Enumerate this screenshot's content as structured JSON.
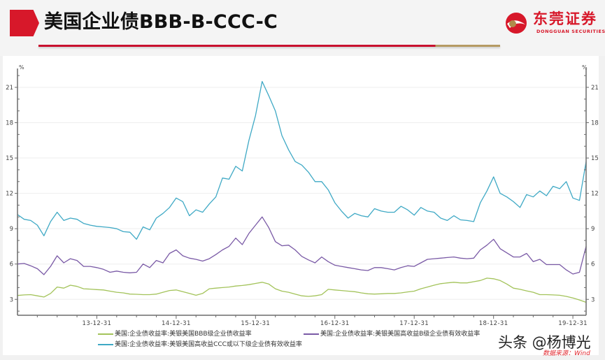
{
  "header": {
    "title": "美国企业债BBB-B-CCC-C",
    "logo": {
      "name_cn": "东莞证券",
      "name_en": "DONGGUAN SECURITIES"
    }
  },
  "colors": {
    "brand_red": "#d7182a",
    "rule_gold": "#b59a63",
    "source_red": "#e2282f"
  },
  "axis_units": {
    "left": "%",
    "right": "%"
  },
  "watermark": "头条 @杨博光",
  "source": "数据来源：Wind",
  "chart_data": {
    "type": "line",
    "title": "美国企业债BBB-B-CCC-C",
    "xlabel": "",
    "ylabel": "%",
    "ylabel_right": "%",
    "ylim": [
      1.65,
      22.6
    ],
    "xlim": [
      "2013-01",
      "2020-03"
    ],
    "yticks": [
      3,
      6,
      9,
      12,
      15,
      18,
      21
    ],
    "xticks": [
      {
        "at": "2014-01",
        "label": "13-12-31"
      },
      {
        "at": "2015-01",
        "label": "14-12-31"
      },
      {
        "at": "2016-01",
        "label": "15-12-31"
      },
      {
        "at": "2017-01",
        "label": "16-12-31"
      },
      {
        "at": "2018-01",
        "label": "17-12-31"
      },
      {
        "at": "2019-01",
        "label": "18-12-31"
      },
      {
        "at": "2020-01",
        "label": "19-12-31"
      }
    ],
    "grid": true,
    "legend_position": "bottom",
    "x": [
      "2013-01",
      "2013-02",
      "2013-03",
      "2013-04",
      "2013-05",
      "2013-06",
      "2013-07",
      "2013-08",
      "2013-09",
      "2013-10",
      "2013-11",
      "2013-12",
      "2014-01",
      "2014-02",
      "2014-03",
      "2014-04",
      "2014-05",
      "2014-06",
      "2014-07",
      "2014-08",
      "2014-09",
      "2014-10",
      "2014-11",
      "2014-12",
      "2015-01",
      "2015-02",
      "2015-03",
      "2015-04",
      "2015-05",
      "2015-06",
      "2015-07",
      "2015-08",
      "2015-09",
      "2015-10",
      "2015-11",
      "2015-12",
      "2016-01",
      "2016-02",
      "2016-03",
      "2016-04",
      "2016-05",
      "2016-06",
      "2016-07",
      "2016-08",
      "2016-09",
      "2016-10",
      "2016-11",
      "2016-12",
      "2017-01",
      "2017-02",
      "2017-03",
      "2017-04",
      "2017-05",
      "2017-06",
      "2017-07",
      "2017-08",
      "2017-09",
      "2017-10",
      "2017-11",
      "2017-12",
      "2018-01",
      "2018-02",
      "2018-03",
      "2018-04",
      "2018-05",
      "2018-06",
      "2018-07",
      "2018-08",
      "2018-09",
      "2018-10",
      "2018-11",
      "2018-12",
      "2019-01",
      "2019-02",
      "2019-03",
      "2019-04",
      "2019-05",
      "2019-06",
      "2019-07",
      "2019-08",
      "2019-09",
      "2019-10",
      "2019-11",
      "2019-12",
      "2020-01",
      "2020-02",
      "2020-03"
    ],
    "series": [
      {
        "name": "美国:企业债收益率:美银美国BBB级企业债收益率",
        "color": "#a3c35a",
        "values": [
          3.33,
          3.38,
          3.4,
          3.3,
          3.2,
          3.5,
          4.05,
          3.95,
          4.2,
          4.1,
          3.9,
          3.87,
          3.83,
          3.8,
          3.7,
          3.6,
          3.55,
          3.45,
          3.43,
          3.4,
          3.4,
          3.45,
          3.6,
          3.75,
          3.8,
          3.65,
          3.5,
          3.35,
          3.5,
          3.9,
          3.95,
          4.0,
          4.05,
          4.13,
          4.18,
          4.25,
          4.35,
          4.45,
          4.3,
          3.9,
          3.7,
          3.6,
          3.45,
          3.3,
          3.25,
          3.3,
          3.4,
          3.85,
          3.8,
          3.75,
          3.7,
          3.65,
          3.55,
          3.47,
          3.45,
          3.47,
          3.5,
          3.5,
          3.55,
          3.63,
          3.7,
          3.9,
          4.05,
          4.2,
          4.33,
          4.4,
          4.45,
          4.4,
          4.4,
          4.5,
          4.6,
          4.8,
          4.75,
          4.6,
          4.3,
          3.95,
          3.85,
          3.72,
          3.6,
          3.4,
          3.4,
          3.38,
          3.35,
          3.25,
          3.12,
          2.95,
          2.75
        ]
      },
      {
        "name": "美国:企业债收益率:美银美国高收益B级企业债有效收益率",
        "color": "#7a5aa6",
        "values": [
          6.0,
          6.05,
          5.85,
          5.6,
          5.1,
          5.8,
          6.7,
          6.1,
          6.45,
          6.3,
          5.8,
          5.8,
          5.7,
          5.55,
          5.3,
          5.4,
          5.3,
          5.25,
          5.3,
          6.0,
          5.7,
          6.3,
          6.1,
          6.9,
          7.2,
          6.7,
          6.5,
          6.4,
          6.25,
          6.45,
          6.8,
          7.2,
          7.5,
          8.2,
          7.65,
          8.6,
          9.3,
          10.0,
          9.1,
          7.9,
          7.55,
          7.6,
          7.2,
          6.65,
          6.35,
          6.1,
          6.6,
          6.2,
          5.9,
          5.8,
          5.7,
          5.6,
          5.5,
          5.45,
          5.7,
          5.7,
          5.6,
          5.5,
          5.7,
          5.85,
          5.8,
          6.1,
          6.4,
          6.45,
          6.5,
          6.55,
          6.6,
          6.5,
          6.45,
          6.5,
          7.2,
          7.6,
          8.1,
          7.3,
          6.95,
          6.6,
          6.6,
          6.9,
          6.2,
          6.4,
          5.95,
          5.95,
          5.95,
          5.5,
          5.15,
          5.3,
          7.5
        ]
      },
      {
        "name": "美国:企业债收益率:美银美国高收益CCC或以下级企业债有效收益率",
        "color": "#3fa9c5",
        "values": [
          10.2,
          9.8,
          9.7,
          9.3,
          8.4,
          9.6,
          10.4,
          9.7,
          9.9,
          9.8,
          9.45,
          9.3,
          9.2,
          9.15,
          9.1,
          9.0,
          8.75,
          8.7,
          8.1,
          9.15,
          8.9,
          9.9,
          10.3,
          10.8,
          11.6,
          11.3,
          10.1,
          10.6,
          10.4,
          11.1,
          11.7,
          13.3,
          13.2,
          14.3,
          13.9,
          16.5,
          18.6,
          21.5,
          20.3,
          19.0,
          16.9,
          15.7,
          14.7,
          14.4,
          13.8,
          13.0,
          13.0,
          12.3,
          11.2,
          10.5,
          9.9,
          10.3,
          10.1,
          10.0,
          10.7,
          10.5,
          10.4,
          10.4,
          10.9,
          10.6,
          10.15,
          10.8,
          10.5,
          10.4,
          9.9,
          9.7,
          10.1,
          9.75,
          9.7,
          9.6,
          11.2,
          12.2,
          13.4,
          12.0,
          11.7,
          11.3,
          10.8,
          11.9,
          11.7,
          12.2,
          11.8,
          12.6,
          12.4,
          13.0,
          11.6,
          11.4,
          14.7
        ]
      }
    ]
  }
}
